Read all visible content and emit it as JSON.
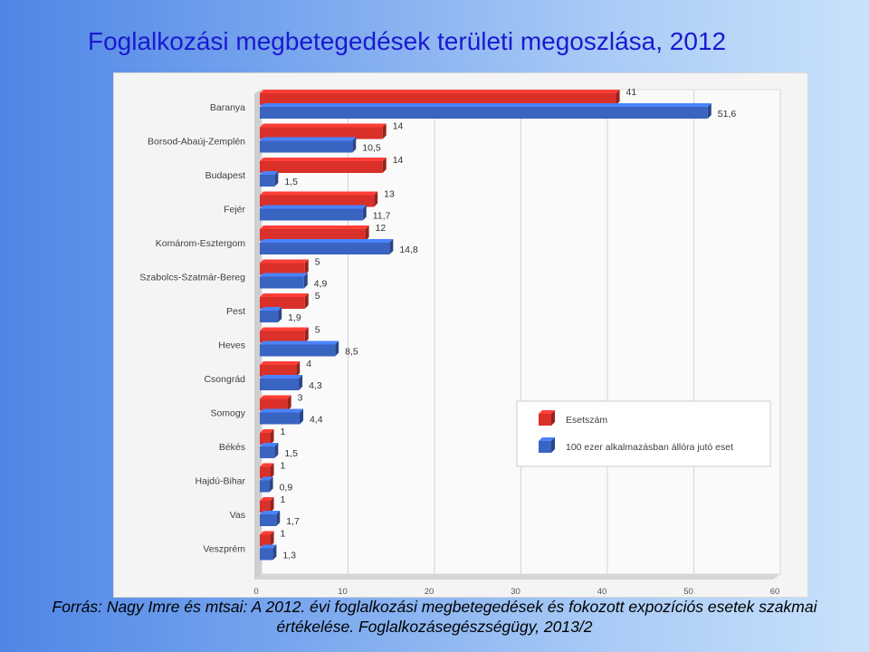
{
  "title": "Foglalkozási megbetegedések területi megoszlása, 2012",
  "footer": {
    "line1": "Forrás: Nagy Imre és mtsai: A 2012. évi foglalkozási megbetegedések és fokozott expozíciós esetek szakmai",
    "line2": "értékelése. Foglalkozásegészségügy, 2013/2"
  },
  "chart_data": {
    "type": "bar",
    "orientation": "horizontal",
    "categories": [
      "Baranya",
      "Borsod-Abaúj-Zemplén",
      "Budapest",
      "Fejér",
      "Komárom-Esztergom",
      "Szabolcs-Szatmár-Bereg",
      "Pest",
      "Heves",
      "Csongrád",
      "Somogy",
      "Békés",
      "Hajdú-Bihar",
      "Vas",
      "Veszprém"
    ],
    "series": [
      {
        "name": "Esetszám",
        "color": "#d9302a",
        "values": [
          41,
          14,
          14,
          13,
          12,
          5,
          5,
          5,
          4,
          3,
          1,
          1,
          1,
          1
        ],
        "labels": [
          "41",
          "14",
          "14",
          "13",
          "12",
          "5",
          "5",
          "5",
          "4",
          "3",
          "1",
          "1",
          "1",
          "1"
        ]
      },
      {
        "name": "100 ezer alkalmazásban állóra jutó eset",
        "color": "#3a64c2",
        "values": [
          51.6,
          10.5,
          1.5,
          11.7,
          14.8,
          4.9,
          1.9,
          8.5,
          4.3,
          4.4,
          1.5,
          0.9,
          1.7,
          1.3
        ],
        "labels": [
          "51,6",
          "10,5",
          "1,5",
          "11,7",
          "14,8",
          "4,9",
          "1,9",
          "8,5",
          "4,3",
          "4,4",
          "1,5",
          "0,9",
          "1,7",
          "1,3"
        ]
      }
    ],
    "xlim": [
      0,
      60
    ],
    "xticks": [
      "0",
      "10",
      "20",
      "30",
      "40",
      "50",
      "60"
    ],
    "grid": true,
    "legend_position": "bottom-right"
  }
}
